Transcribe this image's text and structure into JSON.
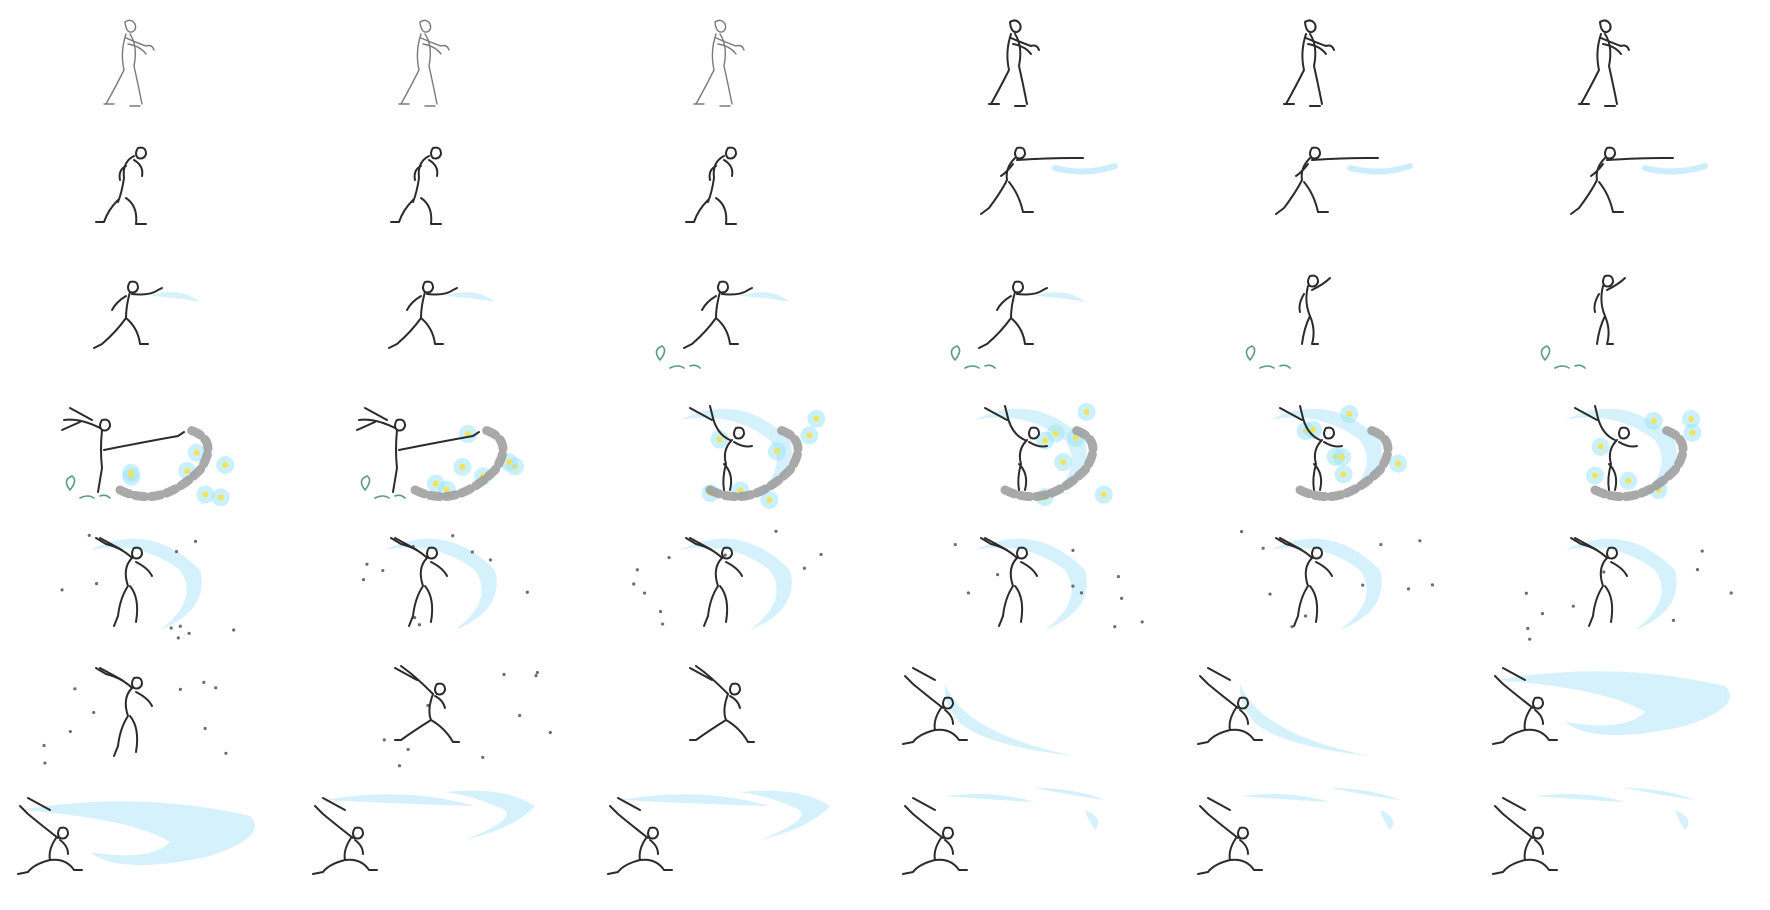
{
  "sheet": {
    "rows": 7,
    "columns": 6,
    "frame_count": 42,
    "colors": {
      "ink": "#2b2b2b",
      "sketch": "#7a7a7a",
      "water_effect": "#cdeefb",
      "spark": "#f2e35a",
      "smoke": "#9a9a9a",
      "debris": "#5a9a86",
      "background": "#ffffff"
    }
  },
  "frames": [
    {
      "pose": "stand",
      "fx": []
    },
    {
      "pose": "stand",
      "fx": []
    },
    {
      "pose": "stand",
      "fx": []
    },
    {
      "pose": "stand",
      "fx": []
    },
    {
      "pose": "stand",
      "fx": []
    },
    {
      "pose": "stand",
      "fx": []
    },
    {
      "pose": "crouch",
      "fx": []
    },
    {
      "pose": "crouch",
      "fx": []
    },
    {
      "pose": "crouch",
      "fx": []
    },
    {
      "pose": "punch",
      "fx": [
        "streak"
      ]
    },
    {
      "pose": "punch",
      "fx": [
        "streak"
      ]
    },
    {
      "pose": "punch",
      "fx": [
        "streak"
      ]
    },
    {
      "pose": "reach",
      "fx": [
        "wisp"
      ]
    },
    {
      "pose": "reach",
      "fx": [
        "wisp"
      ]
    },
    {
      "pose": "reach",
      "fx": [
        "wisp",
        "debris"
      ]
    },
    {
      "pose": "reach",
      "fx": [
        "wisp",
        "debris"
      ]
    },
    {
      "pose": "twist",
      "fx": [
        "debris"
      ]
    },
    {
      "pose": "twist",
      "fx": [
        "debris"
      ]
    },
    {
      "pose": "kick",
      "fx": [
        "sparks",
        "smoke",
        "debris"
      ]
    },
    {
      "pose": "kick",
      "fx": [
        "sparks",
        "smoke",
        "debris"
      ]
    },
    {
      "pose": "spin",
      "fx": [
        "arc",
        "sparks",
        "smoke"
      ]
    },
    {
      "pose": "spin",
      "fx": [
        "arc",
        "sparks",
        "smoke"
      ]
    },
    {
      "pose": "spin",
      "fx": [
        "ring",
        "sparks",
        "smoke"
      ]
    },
    {
      "pose": "spin",
      "fx": [
        "ring",
        "sparks",
        "smoke"
      ]
    },
    {
      "pose": "leap",
      "fx": [
        "ring",
        "specks"
      ]
    },
    {
      "pose": "leap",
      "fx": [
        "ring",
        "specks"
      ]
    },
    {
      "pose": "leap",
      "fx": [
        "ring",
        "specks"
      ]
    },
    {
      "pose": "leap",
      "fx": [
        "ring",
        "specks"
      ]
    },
    {
      "pose": "leap",
      "fx": [
        "ring",
        "specks"
      ]
    },
    {
      "pose": "leap",
      "fx": [
        "ring",
        "specks"
      ]
    },
    {
      "pose": "leap",
      "fx": [
        "specks"
      ]
    },
    {
      "pose": "lunge",
      "fx": [
        "specks"
      ]
    },
    {
      "pose": "lunge",
      "fx": []
    },
    {
      "pose": "kneel",
      "fx": [
        "blade"
      ]
    },
    {
      "pose": "kneel",
      "fx": [
        "blade"
      ]
    },
    {
      "pose": "kneel",
      "fx": [
        "wave"
      ]
    },
    {
      "pose": "kneel",
      "fx": [
        "wave"
      ]
    },
    {
      "pose": "kneel",
      "fx": [
        "wave-split"
      ]
    },
    {
      "pose": "kneel",
      "fx": [
        "wave-split"
      ]
    },
    {
      "pose": "kneel",
      "fx": [
        "wave-fade"
      ]
    },
    {
      "pose": "kneel",
      "fx": [
        "wave-fade"
      ]
    },
    {
      "pose": "kneel",
      "fx": [
        "wave-fade"
      ]
    }
  ]
}
